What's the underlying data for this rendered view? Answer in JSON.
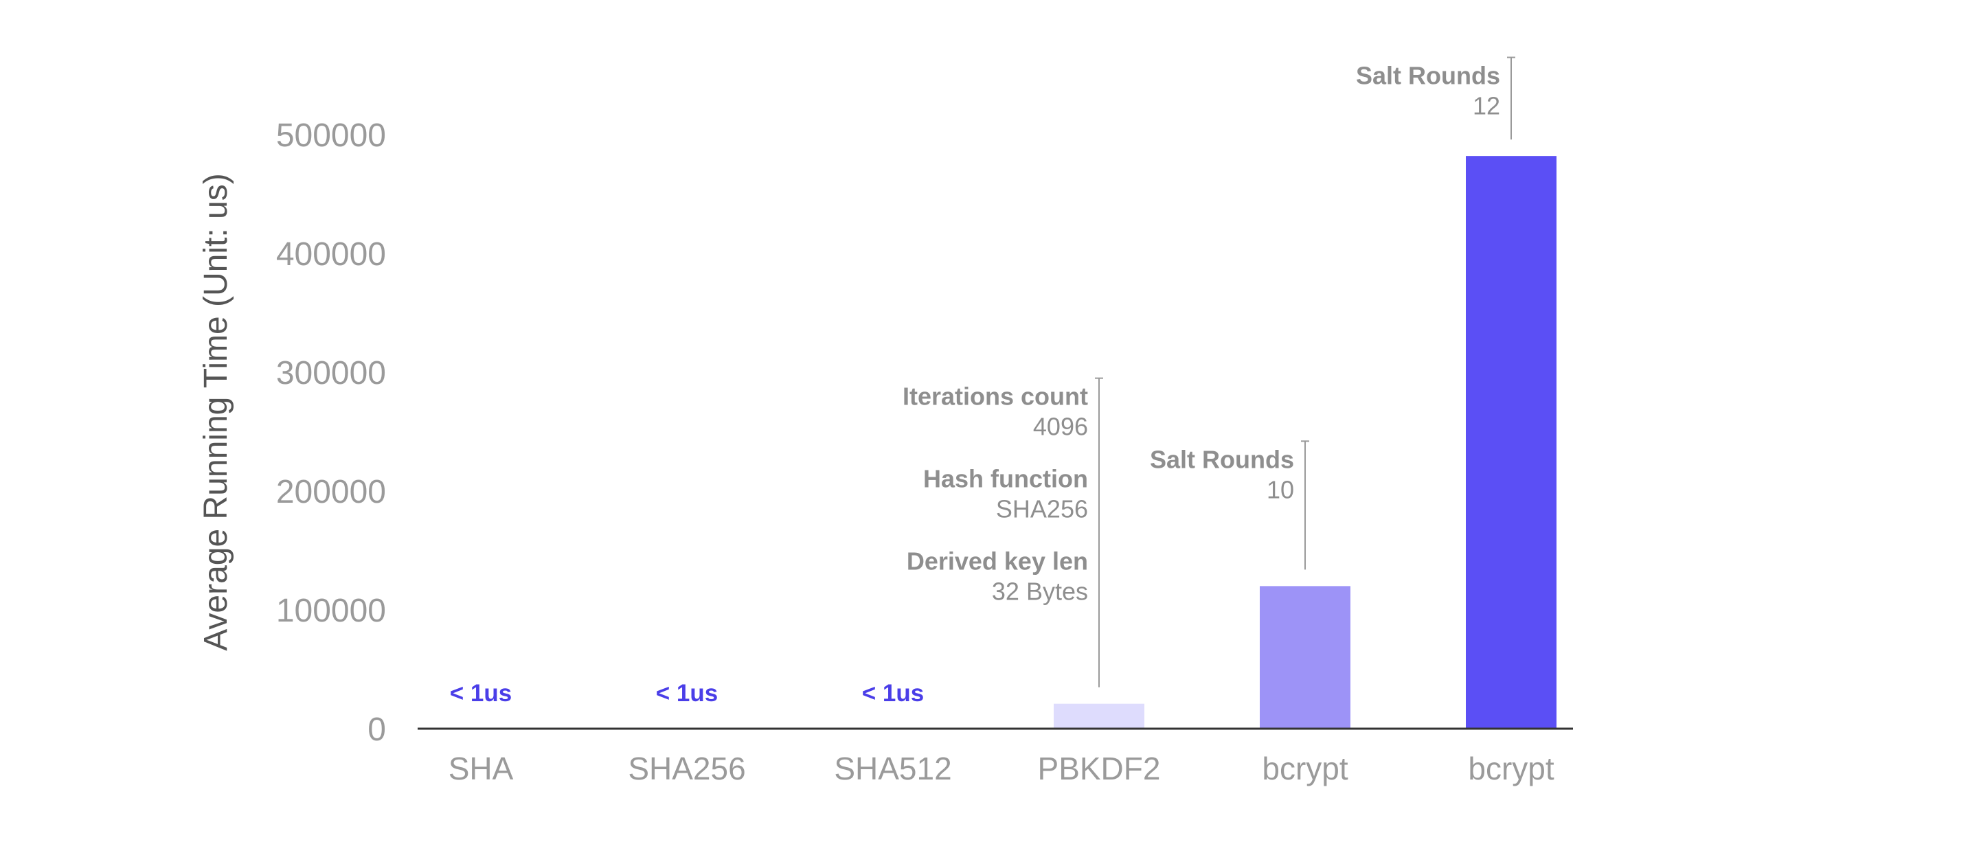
{
  "chart_data": {
    "type": "bar",
    "title": "",
    "xlabel": "",
    "ylabel": "Average Running Time (Unit: us)",
    "ylim": [
      0,
      500000
    ],
    "yticks": [
      0,
      100000,
      200000,
      300000,
      400000,
      500000
    ],
    "ytick_labels": [
      "0",
      "100000",
      "200000",
      "300000",
      "400000",
      "500000"
    ],
    "grid": false,
    "legend": "none",
    "categories": [
      "SHA",
      "SHA256",
      "SHA512",
      "PBKDF2",
      "bcrypt",
      "bcrypt"
    ],
    "values": [
      0,
      0,
      0,
      21000,
      120000,
      482000
    ],
    "bar_colors": [
      "#5b4ff5",
      "#5b4ff5",
      "#5b4ff5",
      "#dedcfd",
      "#9d93f7",
      "#5b4ff5"
    ],
    "small_value_labels": [
      "< 1us",
      "< 1us",
      "< 1us",
      "",
      "",
      ""
    ],
    "small_label_color": "#4a3ee8",
    "annotations": [
      {
        "bar_index": 3,
        "top_value": 295000,
        "items": [
          {
            "label": "Iterations count",
            "value": "4096"
          },
          {
            "label": "Hash function",
            "value": "SHA256"
          },
          {
            "label": "Derived key len",
            "value": "32 Bytes"
          }
        ]
      },
      {
        "bar_index": 4,
        "top_value": 242000,
        "items": [
          {
            "label": "Salt Rounds",
            "value": "10"
          }
        ]
      },
      {
        "bar_index": 5,
        "top_value": 565000,
        "items": [
          {
            "label": "Salt Rounds",
            "value": "12"
          }
        ]
      }
    ]
  }
}
